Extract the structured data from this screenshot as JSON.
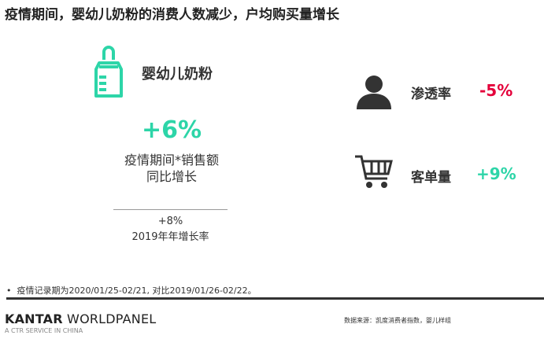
{
  "title": "疫情期间，婴幼儿奶粉的消费人数减少，户均购买量增长",
  "category": {
    "icon": "baby-bottle-icon",
    "name": "婴幼儿奶粉"
  },
  "sales_growth": {
    "value": "+6%",
    "label_line1": "疫情期间*销售额",
    "label_line2": "同比增长",
    "prev_value": "+8%",
    "prev_label": "2019年年增长率"
  },
  "metrics": [
    {
      "icon": "person-icon",
      "label": "渗透率",
      "value": "-5%",
      "color": "#e4003a"
    },
    {
      "icon": "shopping-cart-icon",
      "label": "客单量",
      "value": "+9%",
      "color": "#2dd5a8"
    }
  ],
  "note": "疫情记录期为2020/01/25-02/21, 对比2019/01/26-02/22。",
  "footer": {
    "logo_brand": "KANTAR",
    "logo_product": "WORLDPANEL",
    "logo_sub": "A CTR SERVICE IN CHINA",
    "source": "数据来源：凯度消费者指数，婴儿样组"
  },
  "colors": {
    "accent": "#2dd5a8",
    "negative": "#e4003a"
  }
}
